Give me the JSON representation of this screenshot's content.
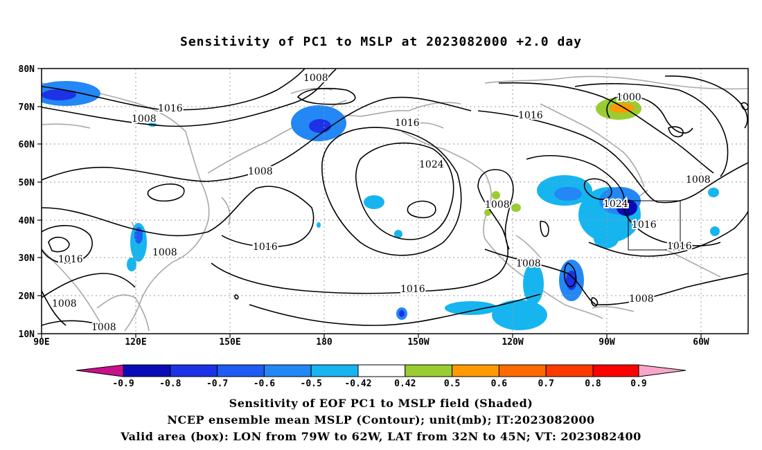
{
  "title": "Sensitivity of PC1 to MSLP at 2023082000 +2.0 day",
  "lon_labels": [
    "90E",
    "120E",
    "150E",
    "180",
    "150W",
    "120W",
    "90W",
    "60W"
  ],
  "lat_labels": [
    "80N",
    "70N",
    "60N",
    "50N",
    "40N",
    "30N",
    "20N",
    "10N"
  ],
  "contour_labels": [
    "1008",
    "1016",
    "1008",
    "1016",
    "1008",
    "1024",
    "1016",
    "1000",
    "1016",
    "1016",
    "1008",
    "1024",
    "1016",
    "1008",
    "1016",
    "1008",
    "1016",
    "1008",
    "1008",
    "1008",
    "1016",
    "1008"
  ],
  "colorbar": {
    "labels": [
      "-0.9",
      "-0.8",
      "-0.7",
      "-0.6",
      "-0.5",
      "-0.42",
      "0.42",
      "0.5",
      "0.6",
      "0.7",
      "0.8",
      "0.9"
    ],
    "colors": [
      "#c8108a",
      "#0a0ab8",
      "#1c32e6",
      "#1e5cf5",
      "#2387f5",
      "#17b5f0",
      "#ffffff",
      "#9acd32",
      "#ff9a00",
      "#ff6a00",
      "#ff3a00",
      "#ff0000",
      "#f7a6c9"
    ]
  },
  "captions": {
    "line1": "Sensitivity of EOF PC1 to MSLP field (Shaded)",
    "line2": "NCEP ensemble mean MSLP (Contour); unit(mb); IT:2023082000",
    "line3": "Valid area (box): LON from 79W to 62W, LAT from 32N to 45N; VT: 2023082400"
  }
}
